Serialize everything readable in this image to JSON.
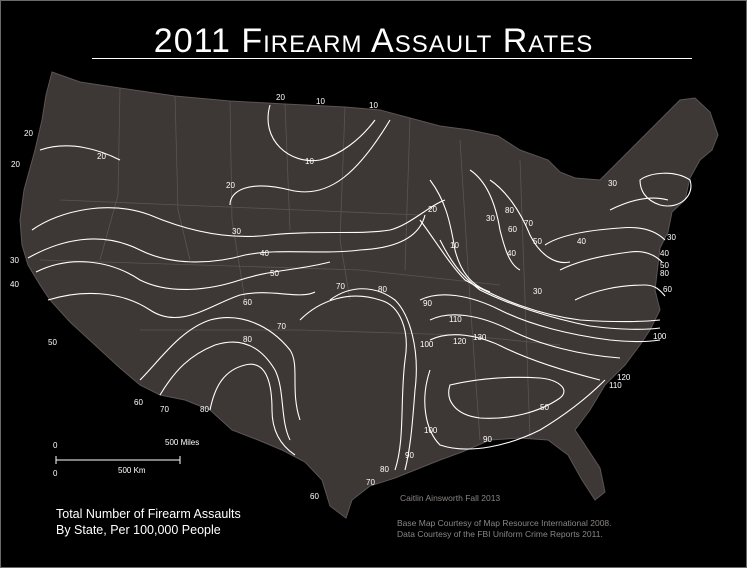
{
  "title": "2011 Firearm Assault Rates",
  "legend": {
    "line1": "Total Number of Firearm Assaults",
    "line2": "By State, Per 100,000 People"
  },
  "scale_bar": {
    "miles_zero": "0",
    "miles_label": "500 Miles",
    "km_zero": "0",
    "km_label": "500 Km"
  },
  "credits": {
    "author": "Caitlin Ainsworth Fall 2013",
    "basemap": "Base Map Courtesy of Map Resource International 2008.",
    "data": "Data Courtesy of the FBI Uniform Crime Reports 2011."
  },
  "contour_labels": [
    "20",
    "10",
    "10",
    "20",
    "20",
    "20",
    "10",
    "20",
    "30",
    "30",
    "40",
    "40",
    "50",
    "60",
    "70",
    "80",
    "90",
    "100",
    "110",
    "120",
    "130",
    "50",
    "50",
    "60",
    "70",
    "80",
    "90",
    "100",
    "80",
    "70",
    "60",
    "80",
    "90",
    "100",
    "110",
    "120",
    "30",
    "40",
    "50",
    "60",
    "70",
    "80",
    "30",
    "40",
    "10",
    "20",
    "30",
    "30",
    "40",
    "50",
    "60",
    "70",
    "80"
  ],
  "colors": {
    "background": "#000000",
    "land": "#3d3735",
    "contour": "#ffffff",
    "border": "#5a5452",
    "credit_text": "#8a8683"
  }
}
